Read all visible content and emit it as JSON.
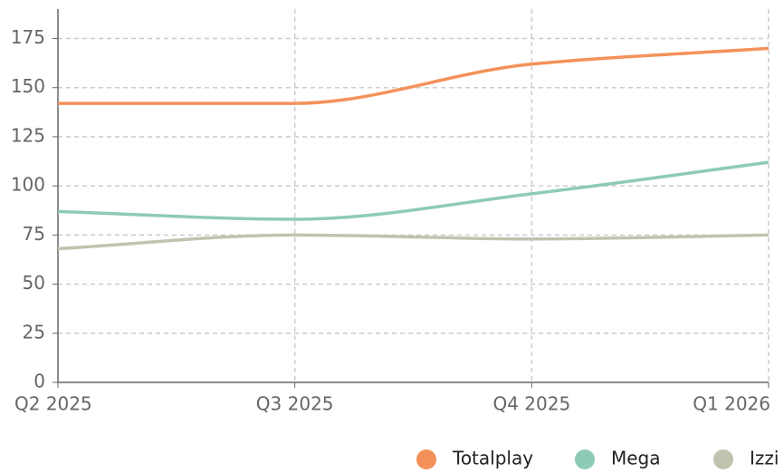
{
  "chart_data": {
    "type": "line",
    "categories": [
      "Q2 2025",
      "Q3 2025",
      "Q4 2025",
      "Q1 2026"
    ],
    "series": [
      {
        "name": "Totalplay",
        "color": "#f4915a",
        "values": [
          142,
          142,
          162,
          170
        ]
      },
      {
        "name": "Mega",
        "color": "#8ecab8",
        "values": [
          87,
          83,
          96,
          112
        ]
      },
      {
        "name": "Izzi",
        "color": "#c2c2b0",
        "values": [
          68,
          75,
          73,
          75
        ]
      }
    ],
    "ylim": [
      0,
      190
    ],
    "yticks": [
      0,
      25,
      50,
      75,
      100,
      125,
      150,
      175
    ],
    "grid": true,
    "legend": "bottom-right"
  }
}
